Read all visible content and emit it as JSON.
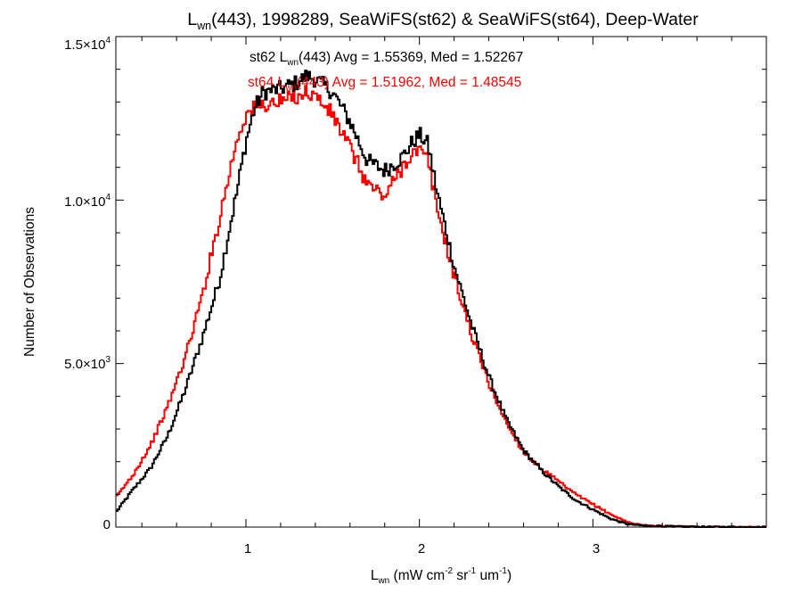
{
  "chart_data": {
    "type": "line",
    "title": {
      "lhs_main": "L",
      "lhs_sub": "wn",
      "rest": "(443), 1998289, SeaWiFS(st62) & SeaWiFS(st64), Deep-Water"
    },
    "xlabel": {
      "main": "L",
      "sub": "wn",
      "units_a": " (mW cm",
      "units_a_sup": "-2",
      "units_b": " sr",
      "units_b_sup": "-1",
      "units_c": " um",
      "units_c_sup": "-1",
      "units_d": ")"
    },
    "ylabel": "Number of Observations",
    "xlim": [
      0.25,
      4.0
    ],
    "ylim": [
      0,
      15000
    ],
    "x_ticks": [
      {
        "value": 1,
        "label": "1"
      },
      {
        "value": 2,
        "label": "2"
      },
      {
        "value": 3,
        "label": "3"
      }
    ],
    "y_ticks": [
      {
        "value": 0,
        "label": "0",
        "mant": "",
        "exp": ""
      },
      {
        "value": 5000,
        "label": "",
        "mant": "5.0×10",
        "exp": "3"
      },
      {
        "value": 10000,
        "label": "",
        "mant": "1.0×10",
        "exp": "4"
      },
      {
        "value": 15000,
        "label": "",
        "mant": "1.5×10",
        "exp": "4"
      }
    ],
    "annotations": [
      {
        "pre": "st62 L",
        "sub": "wn",
        "post": "(443) Avg = 1.55369, Med = 1.52267",
        "color": "#000000"
      },
      {
        "pre": "st64 L",
        "sub": "wn",
        "post": "(443) Avg = 1.51962, Med = 1.48545",
        "color": "#ff0000"
      }
    ],
    "series": [
      {
        "color": "#000000",
        "x": [
          0.25,
          0.35,
          0.45,
          0.55,
          0.65,
          0.75,
          0.85,
          0.9,
          0.95,
          1.0,
          1.05,
          1.1,
          1.2,
          1.3,
          1.35,
          1.4,
          1.5,
          1.6,
          1.7,
          1.8,
          1.9,
          1.95,
          2.0,
          2.05,
          2.1,
          2.2,
          2.3,
          2.4,
          2.5,
          2.6,
          2.7,
          2.8,
          2.9,
          3.0,
          3.1,
          3.2,
          3.3,
          3.5,
          3.7,
          4.0
        ],
        "y": [
          450,
          1150,
          1800,
          2800,
          4200,
          5800,
          7600,
          9000,
          10300,
          11800,
          12800,
          13300,
          13400,
          13600,
          13800,
          13700,
          13300,
          12400,
          11200,
          10900,
          11300,
          11700,
          12000,
          11700,
          10300,
          8000,
          6200,
          4600,
          3300,
          2350,
          1750,
          1250,
          830,
          540,
          260,
          90,
          40,
          15,
          5,
          0
        ]
      },
      {
        "color": "#ff0000",
        "x": [
          0.25,
          0.35,
          0.45,
          0.55,
          0.65,
          0.75,
          0.8,
          0.85,
          0.9,
          0.95,
          1.0,
          1.05,
          1.1,
          1.2,
          1.3,
          1.35,
          1.4,
          1.5,
          1.6,
          1.7,
          1.8,
          1.9,
          1.95,
          2.0,
          2.05,
          2.1,
          2.2,
          2.3,
          2.4,
          2.5,
          2.6,
          2.7,
          2.8,
          2.9,
          3.0,
          3.1,
          3.2,
          3.3,
          3.5,
          3.7,
          4.0
        ],
        "y": [
          900,
          1600,
          2500,
          3700,
          5200,
          7100,
          8300,
          9500,
          10700,
          11900,
          12600,
          12800,
          12900,
          13000,
          13200,
          13300,
          13200,
          12600,
          11600,
          10500,
          10100,
          11000,
          11400,
          11500,
          11200,
          9800,
          7700,
          5900,
          4400,
          3200,
          2300,
          1800,
          1400,
          1000,
          700,
          400,
          150,
          50,
          15,
          5,
          0
        ]
      }
    ]
  }
}
